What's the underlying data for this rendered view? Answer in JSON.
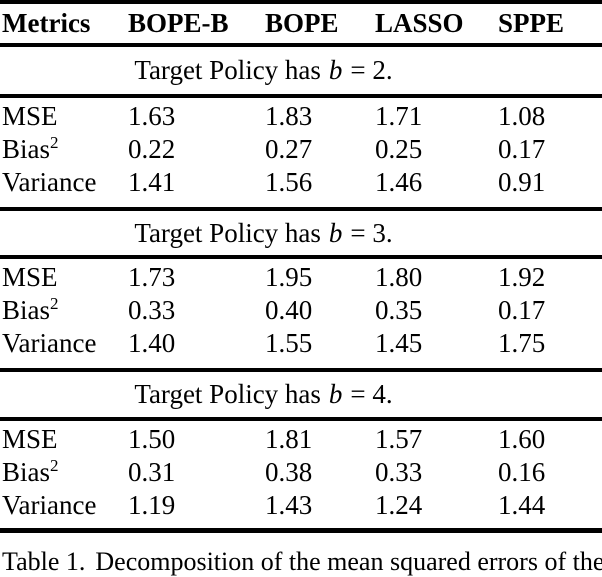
{
  "colors": {
    "background": "#ffffff",
    "text": "#000000",
    "rule": "#000000"
  },
  "table": {
    "headers": [
      "Metrics",
      "BOPE-B",
      "BOPE",
      "LASSO",
      "SPPE"
    ],
    "sections": [
      {
        "title_prefix": "Target Policy has",
        "title_var": "b",
        "title_suffix": "= 2.",
        "rows": [
          {
            "metric": "MSE",
            "values": [
              "1.63",
              "1.83",
              "1.71",
              "1.08"
            ]
          },
          {
            "metric": "Bias",
            "metric_sup": "2",
            "values": [
              "0.22",
              "0.27",
              "0.25",
              "0.17"
            ]
          },
          {
            "metric": "Variance",
            "values": [
              "1.41",
              "1.56",
              "1.46",
              "0.91"
            ]
          }
        ]
      },
      {
        "title_prefix": "Target Policy has",
        "title_var": "b",
        "title_suffix": "= 3.",
        "rows": [
          {
            "metric": "MSE",
            "values": [
              "1.73",
              "1.95",
              "1.80",
              "1.92"
            ]
          },
          {
            "metric": "Bias",
            "metric_sup": "2",
            "values": [
              "0.33",
              "0.40",
              "0.35",
              "0.17"
            ]
          },
          {
            "metric": "Variance",
            "values": [
              "1.40",
              "1.55",
              "1.45",
              "1.75"
            ]
          }
        ]
      },
      {
        "title_prefix": "Target Policy has",
        "title_var": "b",
        "title_suffix": "= 4.",
        "rows": [
          {
            "metric": "MSE",
            "values": [
              "1.50",
              "1.81",
              "1.57",
              "1.60"
            ]
          },
          {
            "metric": "Bias",
            "metric_sup": "2",
            "values": [
              "0.31",
              "0.38",
              "0.33",
              "0.16"
            ]
          },
          {
            "metric": "Variance",
            "values": [
              "1.19",
              "1.43",
              "1.24",
              "1.44"
            ]
          }
        ]
      }
    ]
  },
  "caption": {
    "label": "Table 1.",
    "text": "Decomposition of the mean squared errors of the"
  }
}
